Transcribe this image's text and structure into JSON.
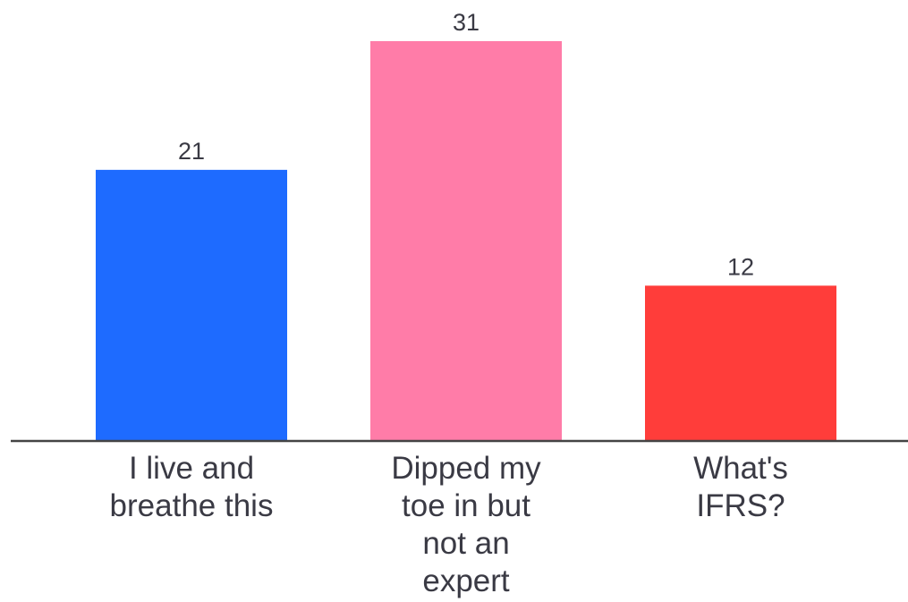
{
  "chart_data": {
    "type": "bar",
    "categories": [
      "I live and breathe this",
      "Dipped my toe in but not an expert",
      "What's IFRS?"
    ],
    "category_lines": [
      [
        "I live and",
        "breathe this"
      ],
      [
        "Dipped my",
        "toe in but",
        "not an",
        "expert"
      ],
      [
        "What's",
        "IFRS?"
      ]
    ],
    "values": [
      21,
      31,
      12
    ],
    "colors": [
      "#1e6bff",
      "#ff7ca8",
      "#ff3d3a"
    ],
    "ylim": [
      0,
      31
    ],
    "grid": false,
    "data_labels": [
      "21",
      "31",
      "12"
    ],
    "baseline_color": "#444444",
    "label_color": "#3a3a44"
  }
}
